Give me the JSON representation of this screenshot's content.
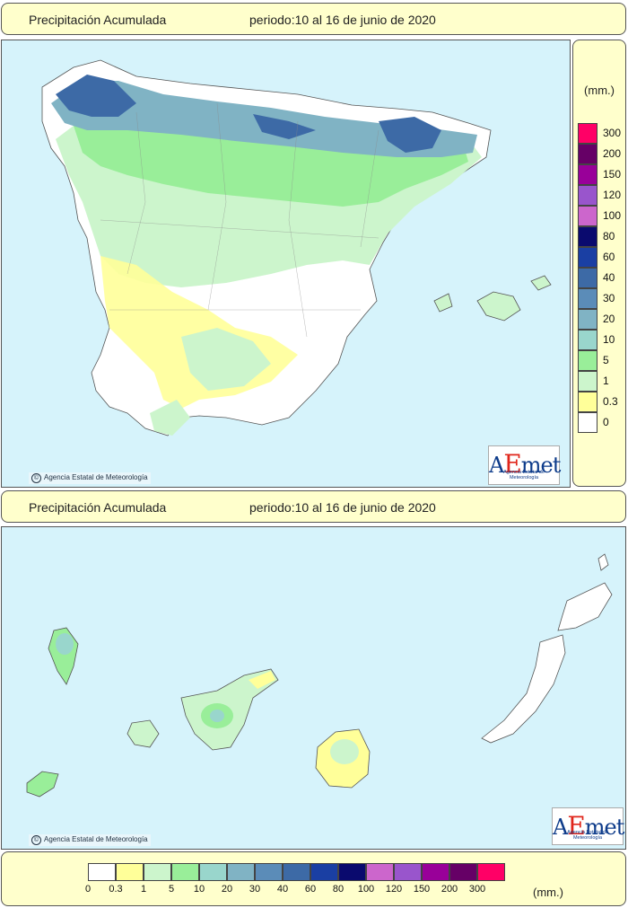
{
  "top_panel": {
    "title": "Precipitación Acumulada",
    "period": "periodo:10 al 16 de junio de 2020"
  },
  "bottom_panel": {
    "title": "Precipitación Acumulada",
    "period": "periodo:10 al 16 de junio de 2020"
  },
  "credit": "Agencia Estatal de Meteorología",
  "logo": {
    "word_a": "A",
    "word_e": "E",
    "word_rest": "met",
    "subtitle": "Agencia Estatal de Meteorología"
  },
  "legend": {
    "units": "(mm.)",
    "classes": [
      {
        "label": "0",
        "color": "#ffffff"
      },
      {
        "label": "0.3",
        "color": "#ffff99"
      },
      {
        "label": "1",
        "color": "#ccf5cc"
      },
      {
        "label": "5",
        "color": "#99ee99"
      },
      {
        "label": "10",
        "color": "#99d6cc"
      },
      {
        "label": "20",
        "color": "#80b3c4"
      },
      {
        "label": "30",
        "color": "#5b8cb8"
      },
      {
        "label": "40",
        "color": "#3d6aa6"
      },
      {
        "label": "60",
        "color": "#1a3fa3"
      },
      {
        "label": "80",
        "color": "#0a0a6e"
      },
      {
        "label": "100",
        "color": "#cc66cc"
      },
      {
        "label": "120",
        "color": "#9955cc"
      },
      {
        "label": "150",
        "color": "#990099"
      },
      {
        "label": "200",
        "color": "#660066"
      },
      {
        "label": "300",
        "color": "#ff0066"
      }
    ]
  },
  "colors": {
    "sea": "#d6f3fb",
    "panel_bg": "#ffffcc"
  }
}
